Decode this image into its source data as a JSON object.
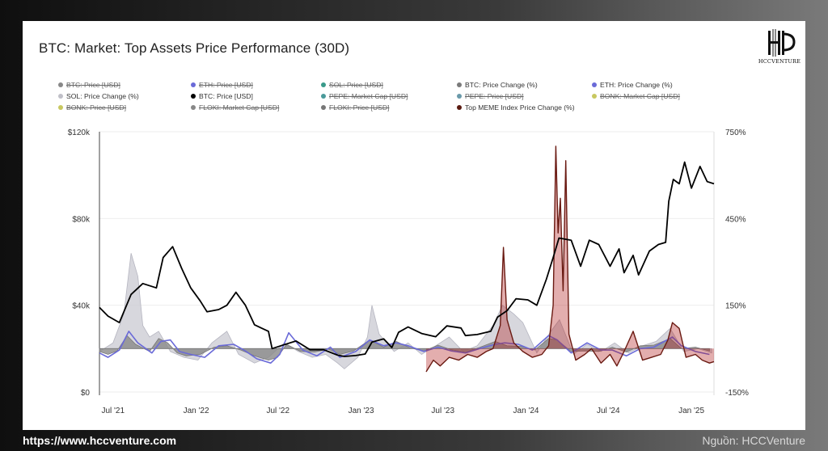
{
  "title": "BTC: Market: Top Assets Price Performance (30D)",
  "logo": {
    "text": "HCCVENTURE",
    "icon": "hcc-monogram-icon"
  },
  "footer": {
    "url": "https://www.hccventure.com",
    "source": "Nguồn: HCCVenture"
  },
  "legend": [
    {
      "label": "BTC: Price [USD]",
      "color": "#888888",
      "off": true
    },
    {
      "label": "ETH: Price [USD]",
      "color": "#6a6ad8",
      "off": true
    },
    {
      "label": "SOL: Price [USD]",
      "color": "#3a9a8a",
      "off": true
    },
    {
      "label": "BTC: Price Change (%)",
      "color": "#7a7a7a",
      "off": false
    },
    {
      "label": "ETH: Price Change (%)",
      "color": "#6a6ad8",
      "off": false
    },
    {
      "label": "SOL: Price Change (%)",
      "color": "#c0c0c8",
      "off": false
    },
    {
      "label": "BTC: Price [USD]",
      "color": "#000000",
      "off": false
    },
    {
      "label": "PEPE: Market Cap [USD]",
      "color": "#4a9a9a",
      "off": true
    },
    {
      "label": "PEPE: Price [USD]",
      "color": "#6a9aaa",
      "off": true
    },
    {
      "label": "BONK: Market Cap [USD]",
      "color": "#c8c860",
      "off": true
    },
    {
      "label": "BONK: Price [USD]",
      "color": "#c8c860",
      "off": true
    },
    {
      "label": "FLOKI: Market Cap [USD]",
      "color": "#888888",
      "off": true
    },
    {
      "label": "FLOKI: Price [USD]",
      "color": "#777777",
      "off": true
    },
    {
      "label": "Top MEME Index Price Change (%)",
      "color": "#5a1a10",
      "off": false
    }
  ],
  "chart_data": {
    "type": "line",
    "x_ticks": [
      "Jul '21",
      "Jan '22",
      "Jul '22",
      "Jan '23",
      "Jul '23",
      "Jan '24",
      "Jul '24",
      "Jan '25"
    ],
    "y_left_ticks": [
      "$120k",
      "$80k",
      "$40k",
      "$0"
    ],
    "y_right_ticks": [
      "750%",
      "450%",
      "150%",
      "-150%"
    ],
    "y_left_range": [
      0,
      120000
    ],
    "y_right_range": [
      -150,
      750
    ],
    "grid": true,
    "legend_position": "top",
    "x_range": [
      "2021-06-01",
      "2025-02-20"
    ],
    "series": [
      {
        "name": "BTC: Price [USD]",
        "axis": "left",
        "color": "#000000",
        "x": [
          "2021-06-01",
          "2021-06-20",
          "2021-07-15",
          "2021-08-10",
          "2021-09-05",
          "2021-10-05",
          "2021-10-20",
          "2021-11-10",
          "2021-11-30",
          "2021-12-20",
          "2022-01-10",
          "2022-01-25",
          "2022-02-20",
          "2022-03-10",
          "2022-03-30",
          "2022-04-20",
          "2022-05-10",
          "2022-05-25",
          "2022-06-10",
          "2022-06-18",
          "2022-07-10",
          "2022-08-10",
          "2022-09-10",
          "2022-10-10",
          "2022-11-10",
          "2022-11-25",
          "2022-12-20",
          "2023-01-10",
          "2023-01-25",
          "2023-02-20",
          "2023-03-10",
          "2023-03-25",
          "2023-04-15",
          "2023-05-15",
          "2023-06-15",
          "2023-07-10",
          "2023-08-10",
          "2023-08-20",
          "2023-09-15",
          "2023-10-15",
          "2023-10-30",
          "2023-11-20",
          "2023-12-10",
          "2024-01-05",
          "2024-01-25",
          "2024-02-15",
          "2024-03-01",
          "2024-03-14",
          "2024-04-10",
          "2024-05-01",
          "2024-05-20",
          "2024-06-10",
          "2024-07-05",
          "2024-07-25",
          "2024-08-05",
          "2024-08-25",
          "2024-09-06",
          "2024-09-30",
          "2024-10-20",
          "2024-11-05",
          "2024-11-12",
          "2024-11-22",
          "2024-12-05",
          "2024-12-17",
          "2025-01-01",
          "2025-01-20",
          "2025-02-05",
          "2025-02-20"
        ],
        "values": [
          39000,
          35000,
          32000,
          45000,
          50000,
          48000,
          62000,
          67000,
          57000,
          48000,
          42000,
          37000,
          38000,
          40000,
          46000,
          40000,
          31000,
          29500,
          28000,
          20000,
          21500,
          23500,
          19500,
          19500,
          17000,
          16400,
          16800,
          17500,
          23000,
          24500,
          20500,
          27500,
          30000,
          27000,
          25500,
          30500,
          29500,
          26000,
          26500,
          28000,
          34500,
          37500,
          43000,
          42500,
          40000,
          52000,
          62000,
          71000,
          70000,
          58000,
          70000,
          68000,
          58000,
          66000,
          55000,
          63000,
          54000,
          65000,
          68000,
          69000,
          88000,
          98000,
          96000,
          106000,
          94000,
          104000,
          97000,
          96000
        ]
      },
      {
        "name": "BTC: Price Change (%)",
        "axis": "right",
        "color": "#7a7a7a",
        "x": [
          "2021-06-01",
          "2021-06-20",
          "2021-07-10",
          "2021-08-01",
          "2021-08-20",
          "2021-09-20",
          "2021-10-10",
          "2021-10-30",
          "2021-11-20",
          "2021-12-10",
          "2022-01-10",
          "2022-02-10",
          "2022-03-10",
          "2022-04-10",
          "2022-05-10",
          "2022-06-10",
          "2022-06-30",
          "2022-07-20",
          "2022-08-20",
          "2022-09-20",
          "2022-10-20",
          "2022-11-15",
          "2022-12-15",
          "2023-01-20",
          "2023-02-20",
          "2023-03-20",
          "2023-04-20",
          "2023-05-20",
          "2023-06-20",
          "2023-07-20",
          "2023-08-20",
          "2023-09-20",
          "2023-10-25",
          "2023-11-20",
          "2023-12-20",
          "2024-01-20",
          "2024-02-20",
          "2024-03-10",
          "2024-04-10",
          "2024-05-10",
          "2024-06-10",
          "2024-07-10",
          "2024-08-10",
          "2024-09-10",
          "2024-10-10",
          "2024-11-15",
          "2024-12-10",
          "2025-01-10",
          "2025-02-10"
        ],
        "values": [
          -10,
          -20,
          -8,
          45,
          15,
          -10,
          35,
          20,
          -15,
          -25,
          -20,
          5,
          10,
          -5,
          -25,
          -40,
          -30,
          15,
          -10,
          -12,
          -2,
          -20,
          -8,
          30,
          5,
          25,
          2,
          -8,
          12,
          -4,
          -12,
          4,
          25,
          10,
          8,
          -5,
          35,
          30,
          -10,
          -8,
          -10,
          5,
          -12,
          10,
          12,
          35,
          0,
          5,
          -8
        ]
      },
      {
        "name": "ETH: Price Change (%)",
        "axis": "right",
        "color": "#6a6ad8",
        "x": [
          "2021-06-01",
          "2021-06-20",
          "2021-07-15",
          "2021-08-05",
          "2021-08-25",
          "2021-09-25",
          "2021-10-15",
          "2021-11-05",
          "2021-11-25",
          "2021-12-20",
          "2022-01-20",
          "2022-02-20",
          "2022-03-25",
          "2022-04-20",
          "2022-05-15",
          "2022-06-15",
          "2022-07-05",
          "2022-07-25",
          "2022-08-25",
          "2022-09-25",
          "2022-10-25",
          "2022-11-15",
          "2022-12-20",
          "2023-01-20",
          "2023-02-20",
          "2023-03-20",
          "2023-04-15",
          "2023-05-20",
          "2023-06-20",
          "2023-07-20",
          "2023-08-20",
          "2023-09-20",
          "2023-10-25",
          "2023-11-15",
          "2023-12-15",
          "2024-01-15",
          "2024-02-20",
          "2024-03-10",
          "2024-04-10",
          "2024-05-15",
          "2024-06-15",
          "2024-07-10",
          "2024-08-10",
          "2024-09-10",
          "2024-10-10",
          "2024-11-20",
          "2024-12-10",
          "2025-01-10",
          "2025-02-10"
        ],
        "values": [
          -15,
          -30,
          -5,
          60,
          20,
          -15,
          25,
          30,
          -10,
          -20,
          -30,
          10,
          15,
          -8,
          -35,
          -50,
          -20,
          55,
          -5,
          -25,
          5,
          -30,
          -10,
          30,
          10,
          20,
          10,
          -10,
          5,
          -8,
          -15,
          0,
          15,
          20,
          15,
          -5,
          45,
          30,
          -15,
          20,
          -5,
          -5,
          -25,
          0,
          5,
          40,
          10,
          -10,
          -20
        ]
      },
      {
        "name": "SOL: Price Change (%)",
        "axis": "right",
        "color": "#c0c0c8",
        "x": [
          "2021-06-01",
          "2021-07-01",
          "2021-07-25",
          "2021-08-10",
          "2021-08-25",
          "2021-09-05",
          "2021-09-20",
          "2021-10-10",
          "2021-11-05",
          "2021-12-05",
          "2022-01-05",
          "2022-02-05",
          "2022-03-10",
          "2022-04-05",
          "2022-05-10",
          "2022-06-10",
          "2022-07-15",
          "2022-08-15",
          "2022-09-15",
          "2022-10-15",
          "2022-11-10",
          "2022-11-25",
          "2022-12-25",
          "2023-01-15",
          "2023-01-25",
          "2023-02-10",
          "2023-03-15",
          "2023-04-15",
          "2023-05-15",
          "2023-06-15",
          "2023-07-15",
          "2023-08-15",
          "2023-09-15",
          "2023-10-20",
          "2023-11-10",
          "2023-12-05",
          "2023-12-25",
          "2024-01-25",
          "2024-02-25",
          "2024-03-15",
          "2024-04-15",
          "2024-05-15",
          "2024-06-15",
          "2024-07-15",
          "2024-08-15",
          "2024-09-15",
          "2024-10-15",
          "2024-11-15",
          "2024-12-15",
          "2025-01-15",
          "2025-02-15"
        ],
        "values": [
          -10,
          20,
          120,
          330,
          250,
          80,
          40,
          60,
          -10,
          -30,
          -40,
          20,
          60,
          -20,
          -50,
          -30,
          20,
          -10,
          -30,
          -20,
          -50,
          -70,
          -30,
          40,
          150,
          50,
          -10,
          20,
          -20,
          10,
          40,
          -10,
          10,
          80,
          150,
          120,
          90,
          -15,
          60,
          100,
          -20,
          15,
          -10,
          20,
          -15,
          10,
          25,
          70,
          -10,
          0,
          -15
        ]
      },
      {
        "name": "Top MEME Index Price Change (%)",
        "axis": "right",
        "color": "#6a1a12",
        "x": [
          "2023-05-25",
          "2023-06-10",
          "2023-06-25",
          "2023-07-15",
          "2023-08-05",
          "2023-08-25",
          "2023-09-15",
          "2023-10-05",
          "2023-10-20",
          "2023-11-05",
          "2023-11-12",
          "2023-11-20",
          "2023-12-05",
          "2023-12-25",
          "2024-01-15",
          "2024-02-05",
          "2024-02-20",
          "2024-03-01",
          "2024-03-07",
          "2024-03-12",
          "2024-03-17",
          "2024-03-23",
          "2024-03-29",
          "2024-04-05",
          "2024-04-20",
          "2024-05-10",
          "2024-05-25",
          "2024-06-15",
          "2024-07-05",
          "2024-07-20",
          "2024-08-05",
          "2024-08-25",
          "2024-09-15",
          "2024-10-05",
          "2024-10-25",
          "2024-11-10",
          "2024-11-20",
          "2024-12-05",
          "2024-12-20",
          "2025-01-10",
          "2025-01-25",
          "2025-02-10",
          "2025-02-20"
        ],
        "values": [
          -80,
          -40,
          -60,
          -30,
          -40,
          -20,
          -30,
          -10,
          0,
          80,
          350,
          100,
          20,
          -10,
          -30,
          -20,
          10,
          150,
          700,
          400,
          520,
          200,
          650,
          50,
          -40,
          -20,
          0,
          -50,
          -20,
          -60,
          -10,
          60,
          -40,
          -30,
          -20,
          30,
          90,
          70,
          -30,
          -20,
          -40,
          -50,
          -45
        ]
      }
    ]
  }
}
